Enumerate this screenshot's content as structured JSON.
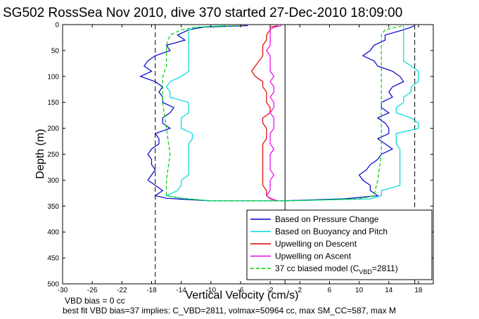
{
  "chart_data": {
    "type": "line",
    "title": "SG502 RossSea Nov 2010, dive 370 started 27-Dec-2010 18:09:00",
    "xlabel": "Vertical Velocity (cm/s)",
    "ylabel": "Depth (m)",
    "xlim": [
      -30,
      20
    ],
    "ylim": [
      500,
      0
    ],
    "y_reversed": true,
    "xticks": [
      -30,
      -26,
      -22,
      -18,
      -14,
      -10,
      -6,
      -2,
      2,
      6,
      10,
      14,
      18
    ],
    "yticks": [
      0,
      50,
      100,
      150,
      200,
      250,
      300,
      350,
      400,
      450,
      500
    ],
    "grid": false,
    "legend_position": "bottom-right",
    "reference_lines": {
      "dashed_black_x": [
        -17.5,
        17.5
      ],
      "solid_black_x": [
        0
      ]
    },
    "series": [
      {
        "name": "Based on Pressure Change",
        "color": "#0000cc",
        "style": "solid",
        "depth": [
          2,
          5,
          10,
          20,
          30,
          40,
          50,
          60,
          70,
          80,
          90,
          100,
          110,
          120,
          130,
          140,
          150,
          160,
          170,
          180,
          190,
          200,
          210,
          220,
          230,
          240,
          250,
          260,
          270,
          280,
          290,
          300,
          310,
          320,
          330,
          335,
          340,
          340,
          336,
          330,
          320,
          310,
          300,
          290,
          280,
          270,
          260,
          250,
          240,
          230,
          220,
          210,
          200,
          190,
          180,
          170,
          160,
          150,
          140,
          130,
          120,
          110,
          100,
          90,
          80,
          70,
          60,
          50,
          40,
          30,
          20,
          10,
          5,
          2
        ],
        "velocity": [
          -5,
          -11,
          -13,
          -14.5,
          -13.5,
          -16,
          -15.5,
          -17.5,
          -18.5,
          -19,
          -18,
          -19.5,
          -17.5,
          -16.5,
          -17,
          -16.5,
          -16.5,
          -15,
          -15.5,
          -16.5,
          -16.5,
          -15.5,
          -17.5,
          -17,
          -17,
          -18,
          -18.5,
          -18,
          -18,
          -17.5,
          -18,
          -18.5,
          -17.5,
          -16.5,
          -17.5,
          -16,
          -10,
          -0.5,
          8,
          12.5,
          11.5,
          11.5,
          10.5,
          10,
          11,
          11.5,
          12.5,
          13,
          14.5,
          13.5,
          12.5,
          14,
          14,
          13.5,
          12.5,
          14,
          13,
          13,
          14.5,
          14,
          14.5,
          16,
          15.5,
          14.5,
          12.5,
          12,
          10.5,
          11.5,
          12,
          13.5,
          13.5,
          16,
          17,
          17.5
        ]
      },
      {
        "name": "Based on Buoyancy and Pitch",
        "color": "#00d8d8",
        "style": "solid",
        "depth": [
          2,
          5,
          10,
          20,
          30,
          40,
          50,
          60,
          70,
          80,
          90,
          100,
          110,
          120,
          130,
          140,
          150,
          160,
          170,
          180,
          190,
          200,
          210,
          220,
          230,
          240,
          250,
          260,
          270,
          280,
          290,
          300,
          310,
          320,
          330,
          335,
          340,
          340,
          336,
          330,
          320,
          310,
          300,
          290,
          280,
          270,
          260,
          250,
          240,
          230,
          220,
          210,
          200,
          190,
          180,
          170,
          160,
          150,
          140,
          130,
          120,
          110,
          100,
          90,
          80,
          70,
          60,
          50,
          40,
          30,
          20,
          10,
          5,
          2
        ],
        "velocity": [
          -8,
          -12,
          -13,
          -13,
          -13,
          -13,
          -13,
          -13,
          -13,
          -13,
          -13,
          -14,
          -15.5,
          -16,
          -15.5,
          -15.5,
          -13,
          -13,
          -13,
          -14,
          -14,
          -14,
          -12.5,
          -12.5,
          -13,
          -13,
          -13,
          -13,
          -13,
          -13,
          -13,
          -14,
          -14,
          -14.5,
          -16,
          -14,
          -10,
          0,
          11.5,
          13,
          13,
          15.5,
          15.5,
          15.5,
          15.5,
          15.5,
          15.5,
          15.5,
          15.5,
          15,
          15,
          15,
          18,
          18,
          17,
          15,
          15,
          16,
          16,
          17,
          17,
          18,
          18,
          18,
          17,
          16,
          16,
          16,
          16,
          16,
          16,
          16,
          16,
          16
        ]
      },
      {
        "name": "Upwelling on Descent",
        "color": "#dd0000",
        "style": "solid",
        "depth": [
          2,
          5,
          10,
          20,
          30,
          40,
          50,
          60,
          70,
          80,
          90,
          100,
          110,
          120,
          130,
          140,
          150,
          160,
          170,
          180,
          190,
          200,
          210,
          220,
          230,
          240,
          250,
          260,
          270,
          280,
          290,
          300,
          310,
          320,
          330,
          335,
          340
        ],
        "velocity": [
          -1,
          -2,
          -2,
          -2.5,
          -2.5,
          -3,
          -3,
          -3,
          -3.5,
          -4,
          -4.5,
          -4,
          -3,
          -3,
          -2.5,
          -2.5,
          -2.5,
          -2,
          -2,
          -3,
          -3,
          -2.5,
          -2.5,
          -2.5,
          -3,
          -3,
          -3,
          -3,
          -3,
          -3,
          -3,
          -3,
          -3,
          -2.5,
          -2.5,
          -2,
          -1
        ]
      },
      {
        "name": "Upwelling on Ascent",
        "color": "#ee00ee",
        "style": "solid",
        "depth": [
          340,
          336,
          330,
          320,
          310,
          300,
          290,
          280,
          270,
          260,
          250,
          240,
          230,
          220,
          210,
          200,
          190,
          180,
          170,
          160,
          150,
          140,
          130,
          120,
          110,
          100,
          90,
          80,
          70,
          60,
          50,
          40,
          30,
          20,
          10,
          5,
          2
        ],
        "velocity": [
          -1,
          -2,
          -2.5,
          -2,
          -2,
          -2,
          -1.5,
          -2,
          -2,
          -2,
          -2,
          -1.5,
          -2,
          -2,
          -2,
          -1.5,
          -1.5,
          -1.5,
          -2,
          -1.5,
          -1.5,
          -2,
          -1.5,
          -1.5,
          -2,
          -1.5,
          -2,
          -2,
          -2,
          -2,
          -2.5,
          -2,
          -2,
          -2,
          -2,
          -1.5,
          -0.5
        ]
      },
      {
        "name": "37 cc biased model (C",
        "name_sub": "VBD",
        "name_tail": "=2811)",
        "color": "#00cc00",
        "style": "dashed",
        "depth": [
          2,
          5,
          10,
          20,
          40,
          60,
          80,
          100,
          120,
          150,
          200,
          250,
          300,
          330,
          335,
          340,
          340,
          336,
          330,
          300,
          250,
          200,
          150,
          100,
          60,
          40,
          20,
          10,
          5,
          2
        ],
        "velocity": [
          -6,
          -12,
          -14,
          -15.5,
          -16,
          -16,
          -16,
          -16.5,
          -16.5,
          -16.5,
          -16,
          -15.5,
          -16,
          -16,
          -14,
          -10,
          0,
          10,
          12,
          12.5,
          13,
          13,
          13,
          13,
          13,
          13,
          13,
          13.5,
          15,
          16
        ]
      }
    ]
  },
  "notes": [
    "VBD bias = 0 cc",
    "best fit VBD bias=37 implies: C_VBD=2811, volmax=50964 cc, max SM_CC=587, max M"
  ]
}
